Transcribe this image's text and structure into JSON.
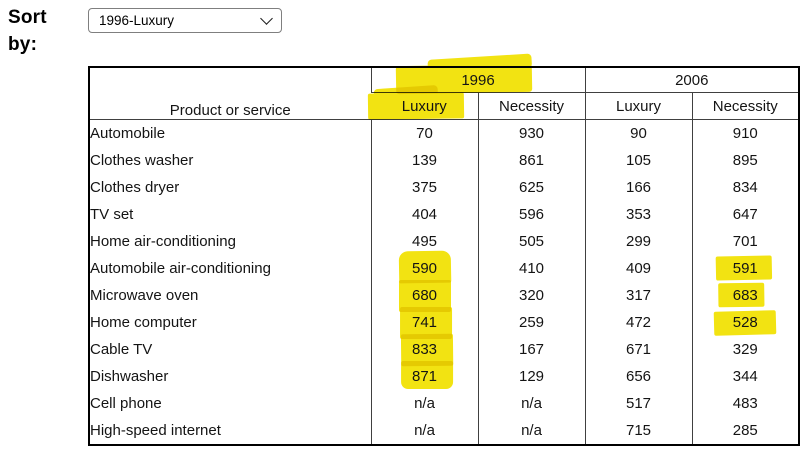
{
  "sort_control": {
    "label": "Sort by:",
    "selected_option": "1996-Luxury"
  },
  "table": {
    "product_header": "Product or service",
    "year_groups": [
      {
        "label": "1996",
        "highlighted": true,
        "subheaders": [
          {
            "label": "Luxury",
            "highlighted": true
          },
          {
            "label": "Necessity",
            "highlighted": false
          }
        ]
      },
      {
        "label": "2006",
        "highlighted": false,
        "subheaders": [
          {
            "label": "Luxury",
            "highlighted": false
          },
          {
            "label": "Necessity",
            "highlighted": false
          }
        ]
      }
    ],
    "rows": [
      {
        "product": "Automobile",
        "values": [
          "70",
          "930",
          "90",
          "910"
        ],
        "highlighted": [
          false,
          false,
          false,
          false
        ]
      },
      {
        "product": "Clothes washer",
        "values": [
          "139",
          "861",
          "105",
          "895"
        ],
        "highlighted": [
          false,
          false,
          false,
          false
        ]
      },
      {
        "product": "Clothes dryer",
        "values": [
          "375",
          "625",
          "166",
          "834"
        ],
        "highlighted": [
          false,
          false,
          false,
          false
        ]
      },
      {
        "product": "TV set",
        "values": [
          "404",
          "596",
          "353",
          "647"
        ],
        "highlighted": [
          false,
          false,
          false,
          false
        ]
      },
      {
        "product": "Home air-conditioning",
        "values": [
          "495",
          "505",
          "299",
          "701"
        ],
        "highlighted": [
          false,
          false,
          false,
          false
        ]
      },
      {
        "product": "Automobile air-conditioning",
        "values": [
          "590",
          "410",
          "409",
          "591"
        ],
        "highlighted": [
          true,
          false,
          false,
          true
        ]
      },
      {
        "product": "Microwave oven",
        "values": [
          "680",
          "320",
          "317",
          "683"
        ],
        "highlighted": [
          true,
          false,
          false,
          true
        ]
      },
      {
        "product": "Home computer",
        "values": [
          "741",
          "259",
          "472",
          "528"
        ],
        "highlighted": [
          true,
          false,
          false,
          true
        ]
      },
      {
        "product": "Cable TV",
        "values": [
          "833",
          "167",
          "671",
          "329"
        ],
        "highlighted": [
          true,
          false,
          false,
          false
        ]
      },
      {
        "product": "Dishwasher",
        "values": [
          "871",
          "129",
          "656",
          "344"
        ],
        "highlighted": [
          true,
          false,
          false,
          false
        ]
      },
      {
        "product": "Cell phone",
        "values": [
          "n/a",
          "n/a",
          "517",
          "483"
        ],
        "highlighted": [
          false,
          false,
          false,
          false
        ]
      },
      {
        "product": "High-speed internet",
        "values": [
          "n/a",
          "n/a",
          "715",
          "285"
        ],
        "highlighted": [
          false,
          false,
          false,
          false
        ]
      }
    ]
  },
  "colors": {
    "highlight_yellow": "#f2e312",
    "table_border": "#000000"
  }
}
